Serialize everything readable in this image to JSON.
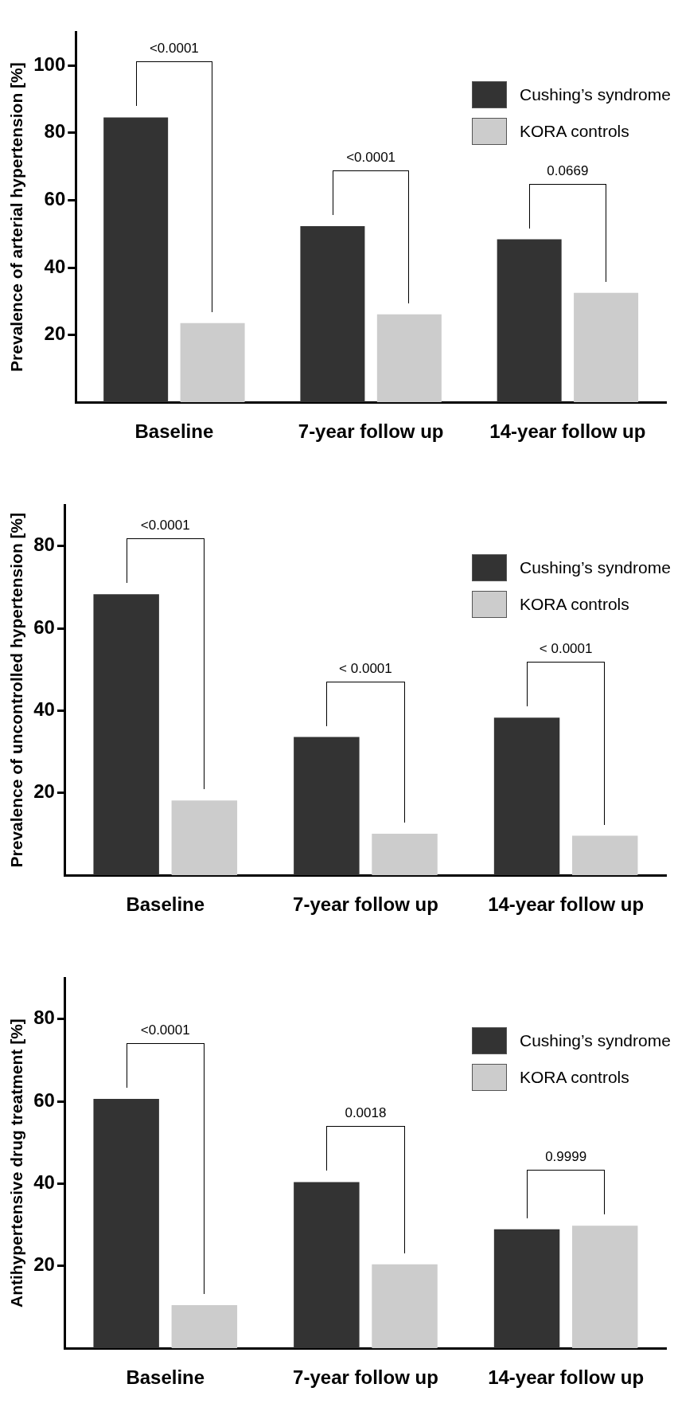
{
  "chart_data": [
    {
      "type": "bar",
      "ylabel": "Prevalence of arterial hypertension [%]",
      "categories": [
        "Baseline",
        "7-year follow up",
        "14-year follow up"
      ],
      "series": [
        {
          "name": "Cushing’s syndrome",
          "color": "#333333",
          "values": [
            84.6,
            52.3,
            48.4
          ]
        },
        {
          "name": "KORA controls",
          "color": "#cccccc",
          "values": [
            23.5,
            26.1,
            32.5
          ]
        }
      ],
      "ylim": [
        0,
        110
      ],
      "yticks": [
        20,
        40,
        60,
        80,
        100
      ],
      "grid": false,
      "legend": "top right",
      "annotations": [
        "<0.0001",
        "<0.0001",
        "0.0669"
      ]
    },
    {
      "type": "bar",
      "ylabel": "Prevalence of uncontrolled hypertension [%]",
      "categories": [
        "Baseline",
        "7-year follow up",
        "14-year follow up"
      ],
      "series": [
        {
          "name": "Cushing’s syndrome",
          "color": "#333333",
          "values": [
            68.3,
            33.6,
            38.3
          ]
        },
        {
          "name": "KORA controls",
          "color": "#cccccc",
          "values": [
            18.2,
            10.1,
            9.6
          ]
        }
      ],
      "ylim": [
        0,
        90
      ],
      "yticks": [
        20,
        40,
        60,
        80
      ],
      "grid": false,
      "legend": "top right",
      "annotations": [
        "<0.0001",
        "< 0.0001",
        "< 0.0001"
      ]
    },
    {
      "type": "bar",
      "ylabel": "Antihypertensive drug treatment [%]",
      "categories": [
        "Baseline",
        "7-year follow up",
        "14-year follow up"
      ],
      "series": [
        {
          "name": "Cushing’s syndrome",
          "color": "#333333",
          "values": [
            60.6,
            40.4,
            28.9
          ]
        },
        {
          "name": "KORA controls",
          "color": "#cccccc",
          "values": [
            10.5,
            20.4,
            29.8
          ]
        }
      ],
      "ylim": [
        0,
        90
      ],
      "yticks": [
        20,
        40,
        60,
        80
      ],
      "grid": false,
      "legend": "top right",
      "annotations": [
        "<0.0001",
        "0.0018",
        "0.9999"
      ]
    }
  ]
}
